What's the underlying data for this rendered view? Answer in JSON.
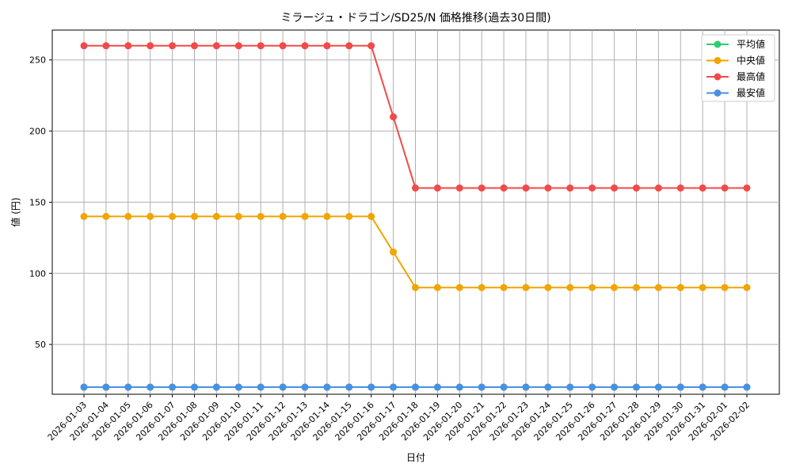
{
  "chart_data": {
    "type": "line",
    "title": "ミラージュ・ドラゴン/SD25/N 価格推移(過去30日間)",
    "xlabel": "日付",
    "ylabel": "値 (円)",
    "ylim": [
      15,
      271
    ],
    "yticks": [
      50,
      100,
      150,
      200,
      250
    ],
    "grid": true,
    "legend_position": "top-right",
    "categories": [
      "2026-01-03",
      "2026-01-04",
      "2026-01-05",
      "2026-01-06",
      "2026-01-07",
      "2026-01-08",
      "2026-01-09",
      "2026-01-10",
      "2026-01-11",
      "2026-01-12",
      "2026-01-13",
      "2026-01-14",
      "2026-01-15",
      "2026-01-16",
      "2026-01-17",
      "2026-01-18",
      "2026-01-19",
      "2026-01-20",
      "2026-01-21",
      "2026-01-22",
      "2026-01-23",
      "2026-01-24",
      "2026-01-25",
      "2026-01-26",
      "2026-01-27",
      "2026-01-28",
      "2026-01-29",
      "2026-01-30",
      "2026-01-31",
      "2026-02-01",
      "2026-02-02"
    ],
    "series": [
      {
        "name": "平均値",
        "color": "#2ecc71",
        "values": [
          20,
          20,
          20,
          20,
          20,
          20,
          20,
          20,
          20,
          20,
          20,
          20,
          20,
          20,
          20,
          20,
          20,
          20,
          20,
          20,
          20,
          20,
          20,
          20,
          20,
          20,
          20,
          20,
          20,
          20,
          20
        ]
      },
      {
        "name": "中央値",
        "color": "#f0a500",
        "values": [
          140,
          140,
          140,
          140,
          140,
          140,
          140,
          140,
          140,
          140,
          140,
          140,
          140,
          140,
          115,
          90,
          90,
          90,
          90,
          90,
          90,
          90,
          90,
          90,
          90,
          90,
          90,
          90,
          90,
          90,
          90
        ]
      },
      {
        "name": "最高値",
        "color": "#f04a4a",
        "values": [
          260,
          260,
          260,
          260,
          260,
          260,
          260,
          260,
          260,
          260,
          260,
          260,
          260,
          260,
          210,
          160,
          160,
          160,
          160,
          160,
          160,
          160,
          160,
          160,
          160,
          160,
          160,
          160,
          160,
          160,
          160
        ]
      },
      {
        "name": "最安値",
        "color": "#4a90e2",
        "values": [
          20,
          20,
          20,
          20,
          20,
          20,
          20,
          20,
          20,
          20,
          20,
          20,
          20,
          20,
          20,
          20,
          20,
          20,
          20,
          20,
          20,
          20,
          20,
          20,
          20,
          20,
          20,
          20,
          20,
          20,
          20
        ]
      }
    ]
  }
}
